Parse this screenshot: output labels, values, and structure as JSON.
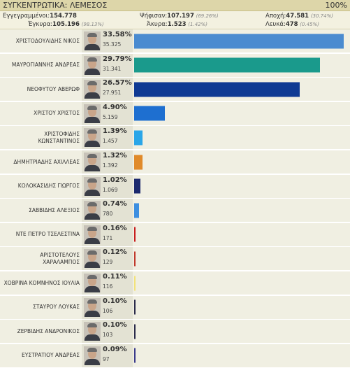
{
  "header": {
    "title": "ΣΥΓΚΕΝΤΡΩΤΙΚΑ: ΛΕΜΕΣΟΣ",
    "progress": "100%"
  },
  "stats": {
    "registered_label": "Εγγεγραμμένοι:",
    "registered": "154.778",
    "voted_label": "Ψήφισαν:",
    "voted": "107.197",
    "voted_pct": "(69.26%)",
    "abstention_label": "Αποχή:",
    "abstention": "47.581",
    "abstention_pct": "(30.74%)",
    "valid_label": "Έγκυρα:",
    "valid": "105.196",
    "valid_pct": "(98.13%)",
    "invalid_label": "Άκυρα:",
    "invalid": "1.523",
    "invalid_pct": "(1.42%)",
    "blank_label": "Λευκά:",
    "blank": "478",
    "blank_pct": "(0.45%)"
  },
  "candidates": [
    {
      "name": "ΧΡΙΣΤΟΔΟΥΛΙΔΗΣ ΝΙΚΟΣ",
      "pct": "33.58%",
      "votes": "35.325",
      "share": 33.58,
      "color": "#4a8bd0"
    },
    {
      "name": "ΜΑΥΡΟΓΙΑΝΝΗΣ ΑΝΔΡΕΑΣ",
      "pct": "29.79%",
      "votes": "31.341",
      "share": 29.79,
      "color": "#1a9a8c"
    },
    {
      "name": "ΝΕΟΦΥΤΟΥ ΑΒΕΡΩΦ",
      "pct": "26.57%",
      "votes": "27.951",
      "share": 26.57,
      "color": "#0f3a93"
    },
    {
      "name": "ΧΡΙΣΤΟΥ ΧΡΙΣΤΟΣ",
      "pct": "4.90%",
      "votes": "5.159",
      "share": 4.9,
      "color": "#1e6fd0"
    },
    {
      "name": "ΧΡΙΣΤΟΦΙΔΗΣ ΚΩΝΣΤΑΝΤΙΝΟΣ",
      "pct": "1.39%",
      "votes": "1.457",
      "share": 1.39,
      "color": "#2aa6e8"
    },
    {
      "name": "ΔΗΜΗΤΡΙΑΔΗΣ ΑΧΙΛΛΕΑΣ",
      "pct": "1.32%",
      "votes": "1.392",
      "share": 1.32,
      "color": "#e08a2a"
    },
    {
      "name": "ΚΟΛΟΚΑΣΙΔΗΣ ΓΙΩΡΓΟΣ",
      "pct": "1.02%",
      "votes": "1.069",
      "share": 1.02,
      "color": "#1c2a6e"
    },
    {
      "name": "ΣΑΒΒΙΔΗΣ ΑΛΕΞΙΟΣ",
      "pct": "0.74%",
      "votes": "780",
      "share": 0.74,
      "color": "#3d8fe0"
    },
    {
      "name": "ΝΤΕ ΠΕΤΡΟ ΤΣΕΛΕΣΤΙΝΑ",
      "pct": "0.16%",
      "votes": "171",
      "share": 0.16,
      "color": "#c81e1e"
    },
    {
      "name": "ΑΡΙΣΤΟΤΕΛΟΥΣ ΧΑΡΑΛΑΜΠΟΣ",
      "pct": "0.12%",
      "votes": "129",
      "share": 0.12,
      "color": "#c0392b"
    },
    {
      "name": "ΧΟΒΡΙΝΑ ΚΟΜΝΗΝΟΣ ΙΟΥΛΙΑ",
      "pct": "0.11%",
      "votes": "116",
      "share": 0.11,
      "color": "#f2e27a"
    },
    {
      "name": "ΣΤΑΥΡΟΥ ΛΟΥΚΑΣ",
      "pct": "0.10%",
      "votes": "106",
      "share": 0.1,
      "color": "#2b2b4a"
    },
    {
      "name": "ΖΕΡΒΙΔΗΣ ΑΝΔΡΟΝΙΚΟΣ",
      "pct": "0.10%",
      "votes": "103",
      "share": 0.1,
      "color": "#2b2b4a"
    },
    {
      "name": "ΕΥΣΤΡΑΤΙΟΥ ΑΝΔΡΕΑΣ",
      "pct": "0.09%",
      "votes": "97",
      "share": 0.09,
      "color": "#3a3a8a"
    }
  ]
}
